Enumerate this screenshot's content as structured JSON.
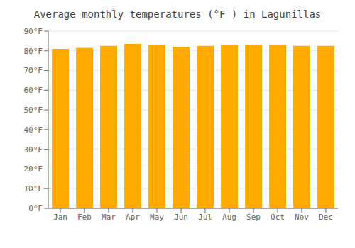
{
  "chart_data": {
    "type": "bar",
    "title": "Average monthly temperatures (°F ) in Lagunillas",
    "categories": [
      "Jan",
      "Feb",
      "Mar",
      "Apr",
      "May",
      "Jun",
      "Jul",
      "Aug",
      "Sep",
      "Oct",
      "Nov",
      "Dec"
    ],
    "values": [
      81,
      81.5,
      82.5,
      83.5,
      83,
      82,
      82.5,
      83,
      83,
      83,
      82.5,
      82.5
    ],
    "color": "#FFAA00",
    "ylim": [
      0,
      90
    ],
    "yticks": [
      {
        "value": 0,
        "label": "0°F"
      },
      {
        "value": 10,
        "label": "10°F"
      },
      {
        "value": 20,
        "label": "20°F"
      },
      {
        "value": 30,
        "label": "30°F"
      },
      {
        "value": 40,
        "label": "40°F"
      },
      {
        "value": 50,
        "label": "50°F"
      },
      {
        "value": 60,
        "label": "60°F"
      },
      {
        "value": 70,
        "label": "70°F"
      },
      {
        "value": 80,
        "label": "80°F"
      },
      {
        "value": 90,
        "label": "90°F"
      }
    ],
    "grid": true
  }
}
